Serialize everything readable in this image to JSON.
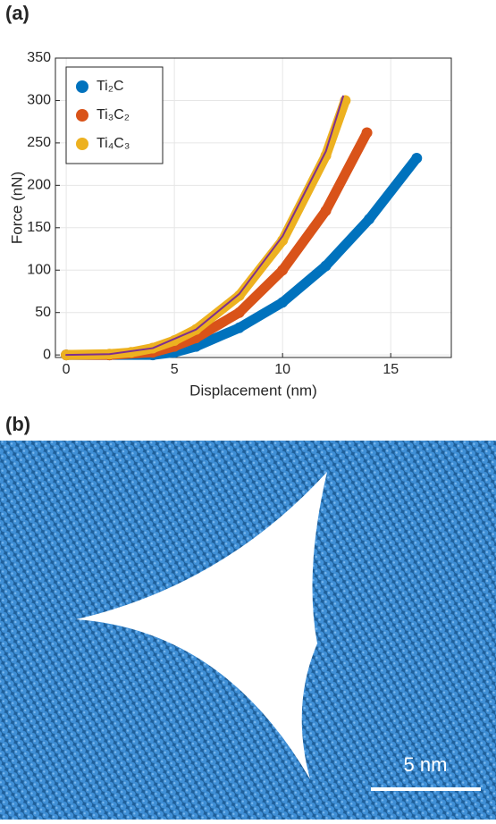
{
  "panel_labels": [
    "(a)",
    "(b)"
  ],
  "chart_data": {
    "type": "scatter",
    "x_label": "Displacement (nm)",
    "y_label": "Force (nN)",
    "xlim": [
      -0.5,
      17.8
    ],
    "ylim": [
      -3,
      350
    ],
    "xticks": [
      0,
      5,
      10,
      15
    ],
    "yticks": [
      0,
      50,
      100,
      150,
      200,
      250,
      300,
      350
    ],
    "grid": true,
    "legend": "upper-left",
    "series": [
      {
        "name": "Ti₂C",
        "color": "#0072bd",
        "x": [
          0,
          2,
          4,
          5,
          6,
          8,
          10,
          12,
          14,
          16.2
        ],
        "values": [
          0,
          0,
          0,
          3,
          10,
          32,
          62,
          105,
          160,
          232
        ]
      },
      {
        "name": "Ti₃C₂",
        "color": "#d95319",
        "x": [
          0,
          2,
          4,
          5,
          6,
          8,
          10,
          12,
          13.9
        ],
        "values": [
          0,
          0,
          3,
          10,
          20,
          50,
          100,
          170,
          262
        ]
      },
      {
        "name": "Ti₄C₃",
        "color": "#edb120",
        "x": [
          0,
          2,
          3,
          4,
          5,
          6,
          8,
          10,
          12,
          12.9
        ],
        "values": [
          0,
          1,
          3,
          8,
          17,
          30,
          70,
          135,
          235,
          300
        ]
      },
      {
        "color": "#7e2f8e",
        "style": "line",
        "x": [
          0,
          2,
          4,
          6,
          8,
          10,
          12,
          12.8
        ],
        "values": [
          0,
          1,
          8,
          30,
          72,
          140,
          240,
          305
        ]
      }
    ]
  },
  "image": {
    "scale_bar": "5 nm"
  }
}
